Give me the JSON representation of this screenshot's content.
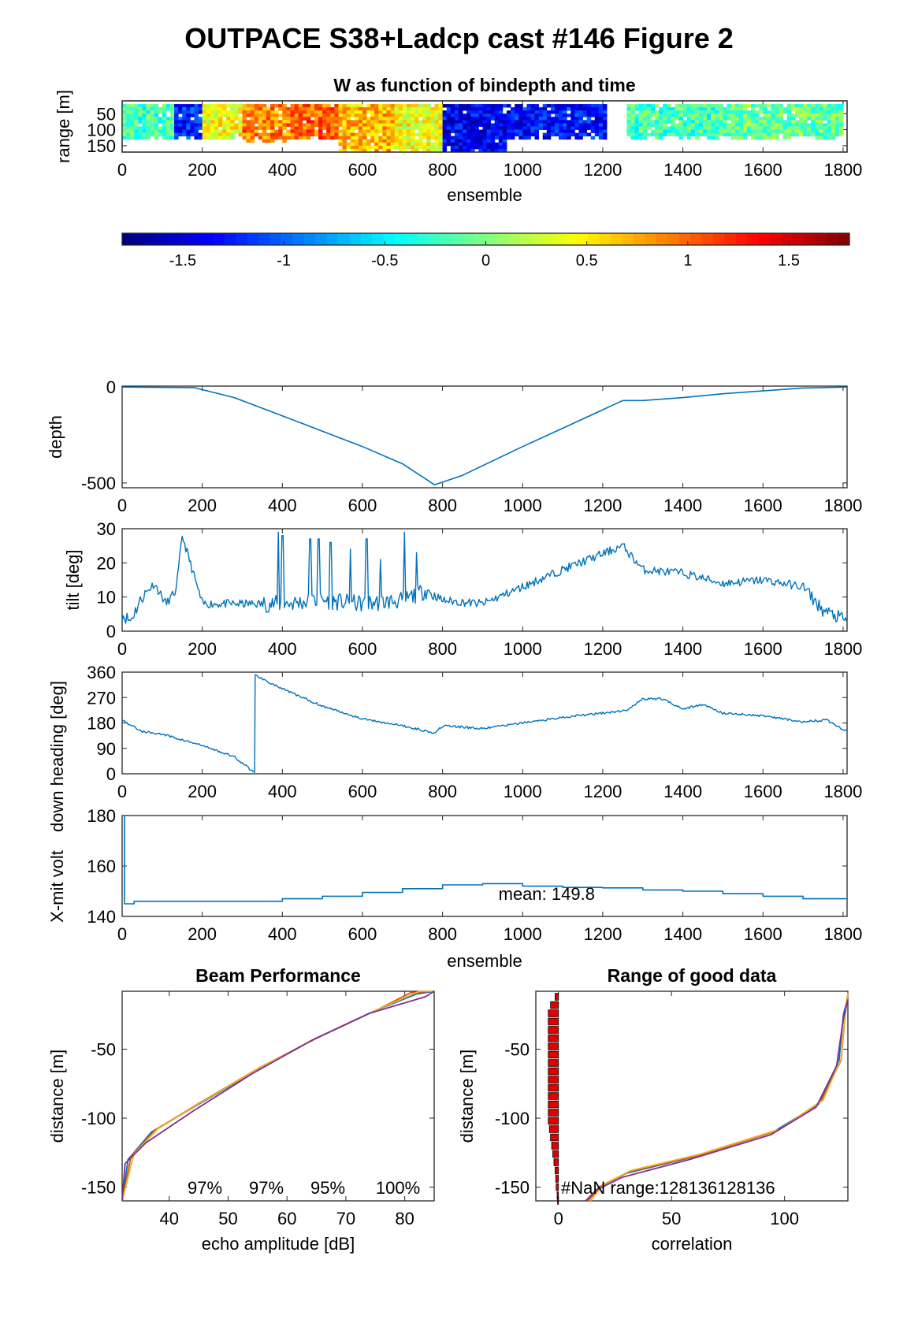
{
  "figure": {
    "title": "OUTPACE S38+Ladcp cast #146 Figure 2"
  },
  "colors": {
    "line": "#0072BD",
    "axis": "#262626",
    "bar": "#e00000",
    "beams": [
      "#0072BD",
      "#D95319",
      "#EDB120",
      "#7E2F8E"
    ]
  },
  "chart_data": [
    {
      "id": "w-image",
      "type": "heatmap",
      "title": "W as function of bindepth and time",
      "xlabel": "ensemble",
      "ylabel": "range [m]",
      "xlim": [
        0,
        1810
      ],
      "ylim": [
        10,
        170
      ],
      "ydir": "reverse",
      "xticks": [
        0,
        200,
        400,
        600,
        800,
        1000,
        1200,
        1400,
        1600,
        1800
      ],
      "yticks": [
        50,
        100,
        150
      ],
      "segments": [
        {
          "x": [
            0,
            130
          ],
          "w": -0.2,
          "range": [
            20,
            130
          ]
        },
        {
          "x": [
            130,
            200
          ],
          "w": -1.2,
          "range": [
            20,
            130
          ]
        },
        {
          "x": [
            200,
            300
          ],
          "w": 0.4,
          "range": [
            20,
            130
          ]
        },
        {
          "x": [
            300,
            420
          ],
          "w": 0.9,
          "range": [
            20,
            140
          ]
        },
        {
          "x": [
            420,
            540
          ],
          "w": 1.0,
          "range": [
            20,
            130
          ]
        },
        {
          "x": [
            540,
            680
          ],
          "w": 0.7,
          "range": [
            20,
            170
          ]
        },
        {
          "x": [
            680,
            800
          ],
          "w": 0.4,
          "range": [
            20,
            170
          ]
        },
        {
          "x": [
            800,
            960
          ],
          "w": -1.4,
          "range": [
            20,
            170
          ]
        },
        {
          "x": [
            960,
            1210
          ],
          "w": -1.3,
          "range": [
            20,
            130
          ]
        },
        {
          "x": [
            1260,
            1500
          ],
          "w": -0.2,
          "range": [
            20,
            130
          ]
        },
        {
          "x": [
            1500,
            1800
          ],
          "w": -0.1,
          "range": [
            20,
            130
          ]
        }
      ]
    },
    {
      "id": "colorbar",
      "type": "colorbar",
      "clim": [
        -1.8,
        1.8
      ],
      "ticks": [
        -1.5,
        -1,
        -0.5,
        0,
        0.5,
        1,
        1.5
      ],
      "ticklabels": [
        "-1.5",
        "-1",
        "-0.5",
        "0",
        "0.5",
        "1",
        "1.5"
      ]
    },
    {
      "id": "depth",
      "type": "line",
      "xlabel": "",
      "ylabel": "depth",
      "xlim": [
        0,
        1810
      ],
      "ylim": [
        -525,
        5
      ],
      "xticks": [
        0,
        200,
        400,
        600,
        800,
        1000,
        1200,
        1400,
        1600,
        1800
      ],
      "yticks": [
        0,
        -500
      ],
      "x": [
        0,
        180,
        280,
        400,
        500,
        600,
        700,
        780,
        850,
        1000,
        1100,
        1250,
        1300,
        1400,
        1500,
        1600,
        1700,
        1810
      ],
      "y": [
        0,
        -3,
        -55,
        -150,
        -230,
        -310,
        -400,
        -510,
        -460,
        -310,
        -215,
        -70,
        -70,
        -55,
        -35,
        -20,
        -5,
        0
      ]
    },
    {
      "id": "tilt",
      "type": "line",
      "xlabel": "",
      "ylabel": "tilt [deg]",
      "xlim": [
        0,
        1810
      ],
      "ylim": [
        0,
        30
      ],
      "xticks": [
        0,
        200,
        400,
        600,
        800,
        1000,
        1200,
        1400,
        1600,
        1800
      ],
      "yticks": [
        0,
        10,
        20,
        30
      ],
      "x": [
        0,
        20,
        50,
        80,
        110,
        135,
        150,
        200,
        300,
        400,
        500,
        600,
        700,
        760,
        800,
        900,
        1000,
        1100,
        1250,
        1300,
        1400,
        1500,
        1600,
        1700,
        1750,
        1810
      ],
      "y": [
        5,
        3,
        10,
        14,
        8,
        12,
        28,
        8,
        8,
        8,
        9,
        8,
        9,
        12,
        9,
        8,
        13,
        18,
        25,
        18,
        17,
        14,
        15,
        13,
        6,
        3
      ],
      "spikes": [
        {
          "x": 390,
          "y": 29
        },
        {
          "x": 400,
          "y": 28
        },
        {
          "x": 470,
          "y": 27
        },
        {
          "x": 490,
          "y": 27
        },
        {
          "x": 520,
          "y": 26
        },
        {
          "x": 570,
          "y": 24
        },
        {
          "x": 610,
          "y": 27
        },
        {
          "x": 645,
          "y": 21
        },
        {
          "x": 705,
          "y": 29
        },
        {
          "x": 735,
          "y": 23
        }
      ]
    },
    {
      "id": "heading",
      "type": "line",
      "xlabel": "",
      "ylabel": "down heading [deg]",
      "xlim": [
        0,
        1810
      ],
      "ylim": [
        0,
        360
      ],
      "xticks": [
        0,
        200,
        400,
        600,
        800,
        1000,
        1200,
        1400,
        1600,
        1800
      ],
      "yticks": [
        0,
        90,
        180,
        270,
        360
      ],
      "x": [
        0,
        50,
        100,
        200,
        280,
        330,
        332,
        400,
        500,
        600,
        700,
        780,
        800,
        900,
        1000,
        1100,
        1200,
        1260,
        1300,
        1350,
        1400,
        1450,
        1500,
        1600,
        1700,
        1760,
        1810
      ],
      "y": [
        190,
        150,
        140,
        100,
        60,
        5,
        350,
        300,
        240,
        195,
        170,
        145,
        170,
        160,
        180,
        200,
        215,
        225,
        265,
        265,
        230,
        245,
        215,
        205,
        185,
        190,
        150
      ]
    },
    {
      "id": "voltage",
      "type": "line",
      "xlabel": "ensemble",
      "ylabel": "X-mit volt",
      "xlim": [
        0,
        1810
      ],
      "ylim": [
        140,
        180
      ],
      "xticks": [
        0,
        200,
        400,
        600,
        800,
        1000,
        1200,
        1400,
        1600,
        1800
      ],
      "yticks": [
        140,
        160,
        180
      ],
      "annotation": "mean: 149.8",
      "x": [
        0,
        3,
        6,
        30,
        300,
        400,
        500,
        600,
        700,
        800,
        900,
        1000,
        1100,
        1200,
        1300,
        1400,
        1500,
        1600,
        1700,
        1810
      ],
      "y": [
        180,
        180,
        145,
        146,
        146,
        147,
        148,
        149.5,
        151,
        152.5,
        153,
        152,
        151.5,
        151.3,
        150.5,
        150,
        149,
        148,
        147,
        146.8
      ]
    },
    {
      "id": "beam-performance",
      "type": "line",
      "title": "Beam Performance",
      "xlabel": "echo amplitude [dB]",
      "ylabel": "distance [m]",
      "xlim": [
        32,
        85
      ],
      "ylim": [
        -160,
        -8
      ],
      "xticks": [
        40,
        50,
        60,
        70,
        80
      ],
      "yticks": [
        -50,
        -100,
        -150
      ],
      "annotations": [
        "97%",
        "97%",
        "95%",
        "100%"
      ],
      "series": [
        {
          "x": [
            32,
            33,
            37,
            45,
            55,
            65,
            75,
            82,
            85
          ],
          "y": [
            -160,
            -130,
            -110,
            -90,
            -65,
            -42,
            -22,
            -10,
            -8
          ]
        },
        {
          "x": [
            32,
            33.5,
            37.5,
            45.5,
            55.5,
            65.5,
            75.5,
            81,
            85
          ],
          "y": [
            -160,
            -128,
            -109,
            -88,
            -63,
            -41,
            -21,
            -9,
            -8
          ]
        },
        {
          "x": [
            32,
            34,
            38,
            46,
            56,
            66,
            76,
            82.5,
            85
          ],
          "y": [
            -160,
            -126,
            -108,
            -87,
            -62,
            -40,
            -20,
            -8,
            -8
          ]
        },
        {
          "x": [
            32,
            32.5,
            36,
            44,
            54,
            64,
            74,
            83.5,
            85
          ],
          "y": [
            -160,
            -133,
            -118,
            -95,
            -68,
            -44,
            -24,
            -12,
            -8
          ]
        }
      ]
    },
    {
      "id": "range-good-data",
      "type": "line",
      "title": "Range of good data",
      "xlabel": "correlation",
      "ylabel": "distance [m]",
      "xlim": [
        -10,
        128
      ],
      "ylim": [
        -160,
        -8
      ],
      "xticks": [
        0,
        50,
        100
      ],
      "yticks": [
        -50,
        -100,
        -150
      ],
      "annotation": "#NaN range:128136128136",
      "bars": {
        "y": [
          -12,
          -18,
          -24,
          -30,
          -36,
          -42,
          -48,
          -54,
          -60,
          -66,
          -72,
          -78,
          -84,
          -90,
          -96,
          -102,
          -108,
          -114,
          -120,
          -126,
          -132,
          -138,
          -144,
          -150,
          -156,
          -160
        ],
        "width": [
          1.5,
          3.5,
          4.5,
          4.5,
          4.5,
          4.5,
          4.5,
          4.5,
          4.5,
          4.5,
          4.5,
          4.5,
          4.5,
          4.5,
          4.5,
          4.5,
          4,
          3.5,
          3,
          2.5,
          2,
          1.5,
          1.2,
          1,
          0.6,
          0.4
        ]
      },
      "series": [
        {
          "x": [
            12,
            18,
            30,
            60,
            95,
            115,
            124,
            126,
            128
          ],
          "y": [
            -160,
            -150,
            -140,
            -128,
            -110,
            -90,
            -60,
            -25,
            -12
          ]
        },
        {
          "x": [
            13,
            19,
            31,
            62,
            97,
            116,
            125,
            127,
            128
          ],
          "y": [
            -160,
            -149,
            -139,
            -127,
            -109,
            -88,
            -58,
            -22,
            -10
          ]
        },
        {
          "x": [
            14,
            20,
            32,
            63,
            98,
            117,
            125,
            127,
            128
          ],
          "y": [
            -160,
            -148,
            -138,
            -126,
            -108,
            -87,
            -57,
            -20,
            -9
          ]
        },
        {
          "x": [
            12,
            17,
            28,
            58,
            94,
            114,
            123,
            126,
            128
          ],
          "y": [
            -160,
            -152,
            -143,
            -130,
            -112,
            -92,
            -62,
            -28,
            -14
          ]
        }
      ]
    }
  ]
}
